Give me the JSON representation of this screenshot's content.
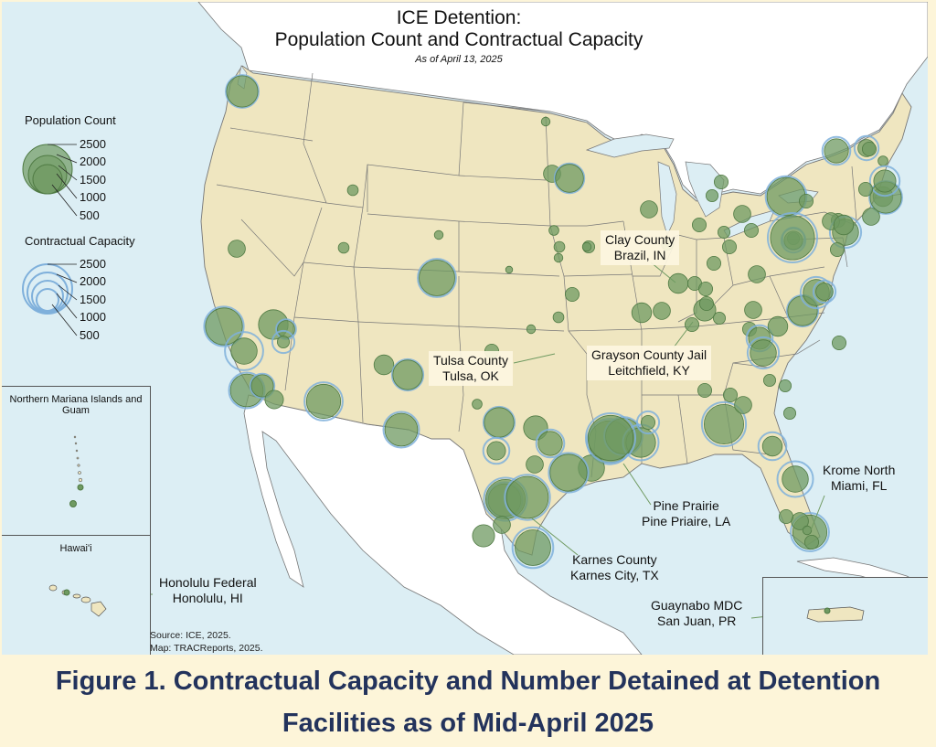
{
  "title": {
    "line1": "ICE Detention:",
    "line2": "Population Count and Contractual Capacity",
    "date": "As of April 13, 2025"
  },
  "legend": {
    "population_title": "Population Count",
    "capacity_title": "Contractual Capacity",
    "values": [
      "2500",
      "2000",
      "1500",
      "1000",
      "500"
    ]
  },
  "insets": {
    "marianas": "Northern Mariana Islands and Guam",
    "hawaii": "Hawai'i"
  },
  "callouts": [
    {
      "name": "Clay County",
      "place": "Brazil, IN"
    },
    {
      "name": "Tulsa County",
      "place": "Tulsa, OK"
    },
    {
      "name": "Grayson County Jail",
      "place": "Leitchfield, KY"
    },
    {
      "name": "Krome North",
      "place": "Miami, FL"
    },
    {
      "name": "Pine Prairie",
      "place": "Pine Priaire, LA"
    },
    {
      "name": "Karnes County",
      "place": "Karnes City, TX"
    },
    {
      "name": "Honolulu Federal",
      "place": "Honolulu, HI"
    },
    {
      "name": "Guaynabo MDC",
      "place": "San Juan, PR"
    }
  ],
  "source": {
    "line1": "Source: ICE, 2025.",
    "line2": "Map: TRACReports, 2025."
  },
  "caption": {
    "line1": "Figure 1. Contractual Capacity and Number Detained at Detention",
    "line2": "Facilities as of Mid-April 2025"
  },
  "colors": {
    "ocean": "#dceef4",
    "us_land": "#efe6c0",
    "foreign_land": "#ffffff",
    "population_fill": "#6f9a61",
    "capacity_ring": "#7fb0db",
    "caption_text": "#23335c",
    "page_background": "#fdf5d9"
  },
  "facilities": [
    {
      "pop": 1000,
      "cap": 1100
    },
    {
      "pop": 300,
      "cap": 0
    },
    {
      "pop": 120,
      "cap": 0
    },
    {
      "pop": 1400,
      "cap": 1600
    },
    {
      "pop": 700,
      "cap": 1500
    },
    {
      "pop": 900,
      "cap": 0
    },
    {
      "pop": 300,
      "cap": 400
    },
    {
      "pop": 150,
      "cap": 500
    },
    {
      "pop": 1100,
      "cap": 1300
    },
    {
      "pop": 500,
      "cap": 600
    },
    {
      "pop": 350,
      "cap": 0
    },
    {
      "pop": 1200,
      "cap": 1500
    },
    {
      "pop": 400,
      "cap": 0
    },
    {
      "pop": 900,
      "cap": 1000
    },
    {
      "pop": 1100,
      "cap": 1300
    },
    {
      "pop": 120,
      "cap": 0
    },
    {
      "pop": 80,
      "cap": 0
    },
    {
      "pop": 80,
      "cap": 0
    },
    {
      "pop": 50,
      "cap": 0
    },
    {
      "pop": 1300,
      "cap": 1500
    },
    {
      "pop": 100,
      "cap": 0
    },
    {
      "pop": 200,
      "cap": 0
    },
    {
      "pop": 300,
      "cap": 0
    },
    {
      "pop": 800,
      "cap": 900
    },
    {
      "pop": 100,
      "cap": 0
    },
    {
      "pop": 120,
      "cap": 0
    },
    {
      "pop": 80,
      "cap": 0
    },
    {
      "pop": 120,
      "cap": 0
    },
    {
      "pop": 80,
      "cap": 0
    },
    {
      "pop": 200,
      "cap": 0
    },
    {
      "pop": 900,
      "cap": 1000
    },
    {
      "pop": 600,
      "cap": 0
    },
    {
      "pop": 350,
      "cap": 700
    },
    {
      "pop": 600,
      "cap": 800
    },
    {
      "pop": 300,
      "cap": 0
    },
    {
      "pop": 1100,
      "cap": 1300
    },
    {
      "pop": 1600,
      "cap": 1900
    },
    {
      "pop": 500,
      "cap": 0
    },
    {
      "pop": 1800,
      "cap": 2100
    },
    {
      "pop": 1300,
      "cap": 1500
    },
    {
      "pop": 900,
      "cap": 1300
    },
    {
      "pop": 700,
      "cap": 0
    },
    {
      "pop": 2100,
      "cap": 2500
    },
    {
      "pop": 1800,
      "cap": 2100
    },
    {
      "pop": 1300,
      "cap": 1700
    },
    {
      "pop": 1400,
      "cap": 1600
    },
    {
      "pop": 300,
      "cap": 0
    },
    {
      "pop": 200,
      "cap": 500
    },
    {
      "pop": 1600,
      "cap": 2000
    },
    {
      "pop": 200,
      "cap": 0
    },
    {
      "pop": 200,
      "cap": 0
    },
    {
      "pop": 500,
      "cap": 0
    },
    {
      "pop": 200,
      "cap": 0
    },
    {
      "pop": 150,
      "cap": 0
    },
    {
      "pop": 400,
      "cap": 0
    },
    {
      "pop": 1500,
      "cap": 1700
    },
    {
      "pop": 150,
      "cap": 500
    },
    {
      "pop": 350,
      "cap": 600
    },
    {
      "pop": 900,
      "cap": 1000
    },
    {
      "pop": 700,
      "cap": 1000
    },
    {
      "pop": 400,
      "cap": 800
    },
    {
      "pop": 1200,
      "cap": 1500
    },
    {
      "pop": 300,
      "cap": 0
    },
    {
      "pop": 200,
      "cap": 0
    },
    {
      "pop": 200,
      "cap": 0
    },
    {
      "pop": 150,
      "cap": 0
    },
    {
      "pop": 300,
      "cap": 0
    },
    {
      "pop": 150,
      "cap": 0
    },
    {
      "pop": 200,
      "cap": 0
    },
    {
      "pop": 200,
      "cap": 0
    },
    {
      "pop": 150,
      "cap": 0
    },
    {
      "pop": 150,
      "cap": 0
    },
    {
      "pop": 150,
      "cap": 0
    },
    {
      "pop": 300,
      "cap": 0
    },
    {
      "pop": 150,
      "cap": 0
    },
    {
      "pop": 200,
      "cap": 0
    },
    {
      "pop": 300,
      "cap": 0
    },
    {
      "pop": 200,
      "cap": 0
    },
    {
      "pop": 200,
      "cap": 0
    },
    {
      "pop": 200,
      "cap": 0
    },
    {
      "pop": 700,
      "cap": 1000
    },
    {
      "pop": 2000,
      "cap": 2500
    },
    {
      "pop": 300,
      "cap": 0
    },
    {
      "pop": 400,
      "cap": 0
    },
    {
      "pop": 200,
      "cap": 0
    },
    {
      "pop": 300,
      "cap": 600
    },
    {
      "pop": 200,
      "cap": 0
    },
    {
      "pop": 100,
      "cap": 0
    },
    {
      "pop": 600,
      "cap": 800
    },
    {
      "pop": 400,
      "cap": 0
    },
    {
      "pop": 1000,
      "cap": 1100
    },
    {
      "pop": 500,
      "cap": 900
    },
    {
      "pop": 300,
      "cap": 0
    },
    {
      "pop": 200,
      "cap": 0
    },
    {
      "pop": 300,
      "cap": 0
    },
    {
      "pop": 400,
      "cap": 0
    },
    {
      "pop": 300,
      "cap": 0
    },
    {
      "pop": 200,
      "cap": 0
    },
    {
      "pop": 500,
      "cap": 700
    },
    {
      "pop": 300,
      "cap": 500
    },
    {
      "pop": 400,
      "cap": 0
    },
    {
      "pop": 300,
      "cap": 0
    },
    {
      "pop": 200,
      "cap": 0
    },
    {
      "pop": 200,
      "cap": 0
    },
    {
      "pop": 200,
      "cap": 0
    },
    {
      "pop": 200,
      "cap": 0
    },
    {
      "pop": 700,
      "cap": 1000
    },
    {
      "pop": 200,
      "cap": 0
    },
    {
      "pop": 150,
      "cap": 0
    },
    {
      "pop": 700,
      "cap": 1300
    },
    {
      "pop": 80,
      "cap": 0
    },
    {
      "pop": 80,
      "cap": 0
    }
  ]
}
